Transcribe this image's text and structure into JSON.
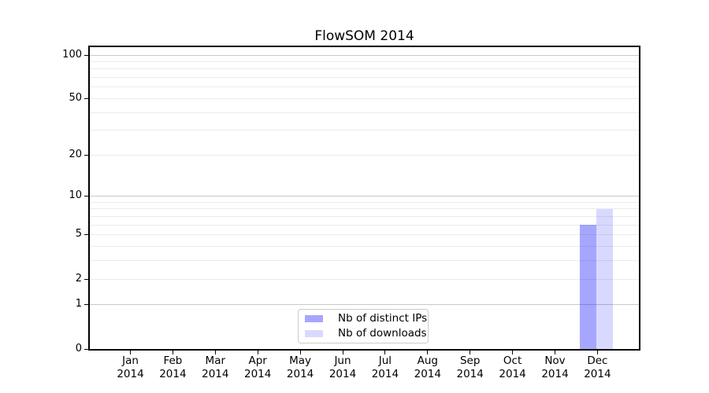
{
  "chart_data": {
    "type": "bar",
    "title": "FlowSOM 2014",
    "categories": [
      "Jan 2014",
      "Feb 2014",
      "Mar 2014",
      "Apr 2014",
      "May 2014",
      "Jun 2014",
      "Jul 2014",
      "Aug 2014",
      "Sep 2014",
      "Oct 2014",
      "Nov 2014",
      "Dec 2014"
    ],
    "x_tick_line1": [
      "Jan",
      "Feb",
      "Mar",
      "Apr",
      "May",
      "Jun",
      "Jul",
      "Aug",
      "Sep",
      "Oct",
      "Nov",
      "Dec"
    ],
    "x_tick_line2": "2014",
    "series": [
      {
        "name": "Nb of distinct IPs",
        "color": "rgba(0,0,255,0.35)",
        "values": [
          0,
          0,
          0,
          0,
          0,
          0,
          0,
          0,
          0,
          0,
          0,
          6
        ]
      },
      {
        "name": "Nb of downloads",
        "color": "rgba(0,0,255,0.15)",
        "values": [
          0,
          0,
          0,
          0,
          0,
          0,
          0,
          0,
          0,
          0,
          0,
          8
        ]
      }
    ],
    "y_axis": {
      "scale": "log10(value+1)",
      "tick_values": [
        0,
        1,
        2,
        5,
        10,
        20,
        50,
        100
      ],
      "tick_labels": [
        "0",
        "1",
        "2",
        "5",
        "10",
        "20",
        "50",
        "100"
      ],
      "major_grid_values": [
        1,
        10,
        100
      ],
      "minor_grid_values": [
        2,
        3,
        4,
        5,
        6,
        7,
        8,
        9,
        20,
        30,
        40,
        50,
        60,
        70,
        80,
        90
      ],
      "ylim": [
        0,
        113
      ]
    },
    "legend": {
      "position": "bottom-center"
    },
    "grid": "on",
    "colors": {
      "axis": "#000000",
      "text": "#000000",
      "major_grid": "#c9c9c9",
      "minor_grid": "#ebebeb",
      "legend_border": "#cccccc"
    }
  }
}
